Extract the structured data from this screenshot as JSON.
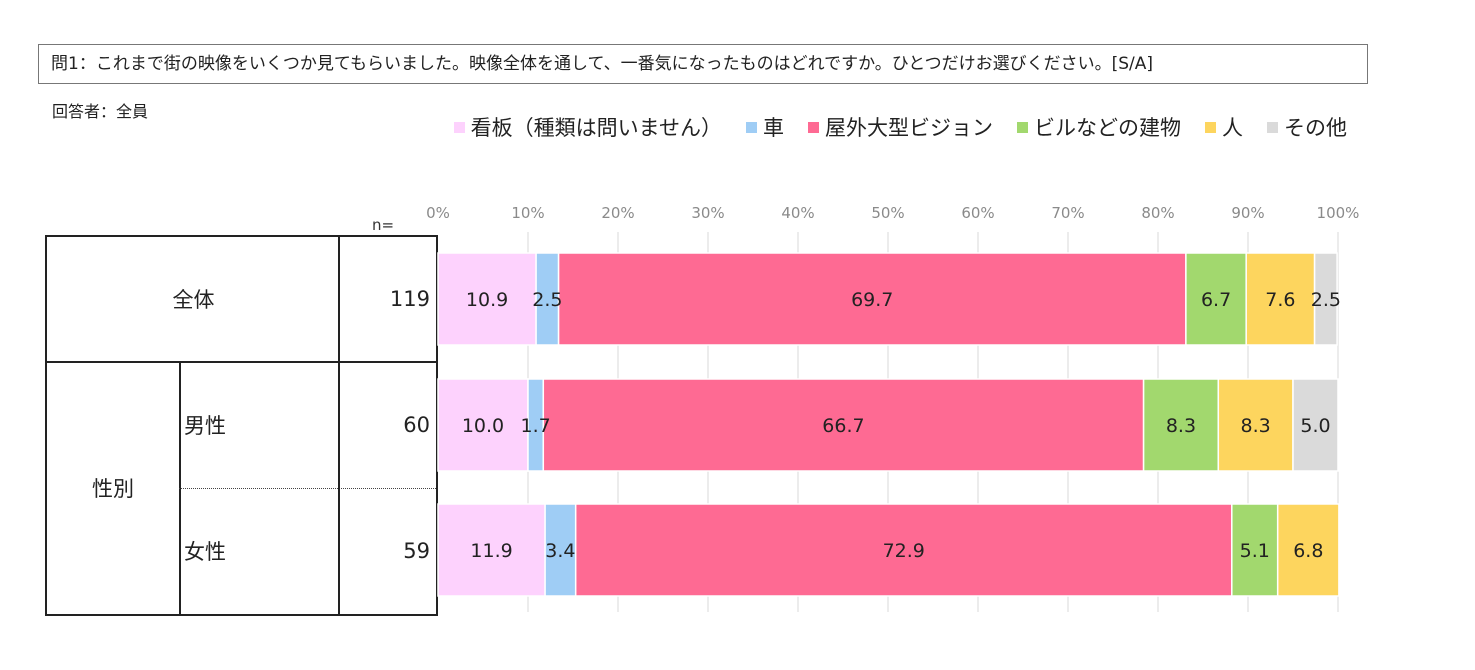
{
  "question": "問1：これまで街の映像をいくつか見てもらいました。映像全体を通して、一番気になったものはどれですか。ひとつだけお選びください。[S/A]",
  "respondent": "回答者：全員",
  "n_header": "n=",
  "table": {
    "group_label": "性別",
    "rows": [
      {
        "label": "全体",
        "n": "119"
      },
      {
        "label": "男性",
        "n": "60"
      },
      {
        "label": "女性",
        "n": "59"
      }
    ]
  },
  "chart_data": {
    "type": "bar",
    "orientation": "horizontal",
    "stacked": true,
    "x_ticks": [
      "0%",
      "10%",
      "20%",
      "30%",
      "40%",
      "50%",
      "60%",
      "70%",
      "80%",
      "90%",
      "100%"
    ],
    "xlim": [
      0,
      100
    ],
    "grid": true,
    "legend_position": "top",
    "categories": [
      "全体",
      "男性",
      "女性"
    ],
    "series": [
      {
        "name": "看板（種類は問いません）",
        "color": "#fdd2fd",
        "values": [
          10.9,
          10.0,
          11.9
        ],
        "labels": [
          "10.9",
          "10.0",
          "11.9"
        ]
      },
      {
        "name": "車",
        "color": "#9fcdf5",
        "values": [
          2.5,
          1.7,
          3.4
        ],
        "labels": [
          "2.5",
          "1.7",
          "3.4"
        ]
      },
      {
        "name": "屋外大型ビジョン",
        "color": "#fe6a93",
        "values": [
          69.7,
          66.7,
          72.9
        ],
        "labels": [
          "69.7",
          "66.7",
          "72.9"
        ]
      },
      {
        "name": "ビルなどの建物",
        "color": "#a2d86e",
        "values": [
          6.7,
          8.3,
          5.1
        ],
        "labels": [
          "6.7",
          "8.3",
          "5.1"
        ]
      },
      {
        "name": "人",
        "color": "#fdd55e",
        "values": [
          7.6,
          8.3,
          6.8
        ],
        "labels": [
          "7.6",
          "8.3",
          "6.8"
        ]
      },
      {
        "name": "その他",
        "color": "#dadada",
        "values": [
          2.5,
          5.0,
          0
        ],
        "labels": [
          "2.5",
          "5.0",
          ""
        ]
      }
    ]
  }
}
